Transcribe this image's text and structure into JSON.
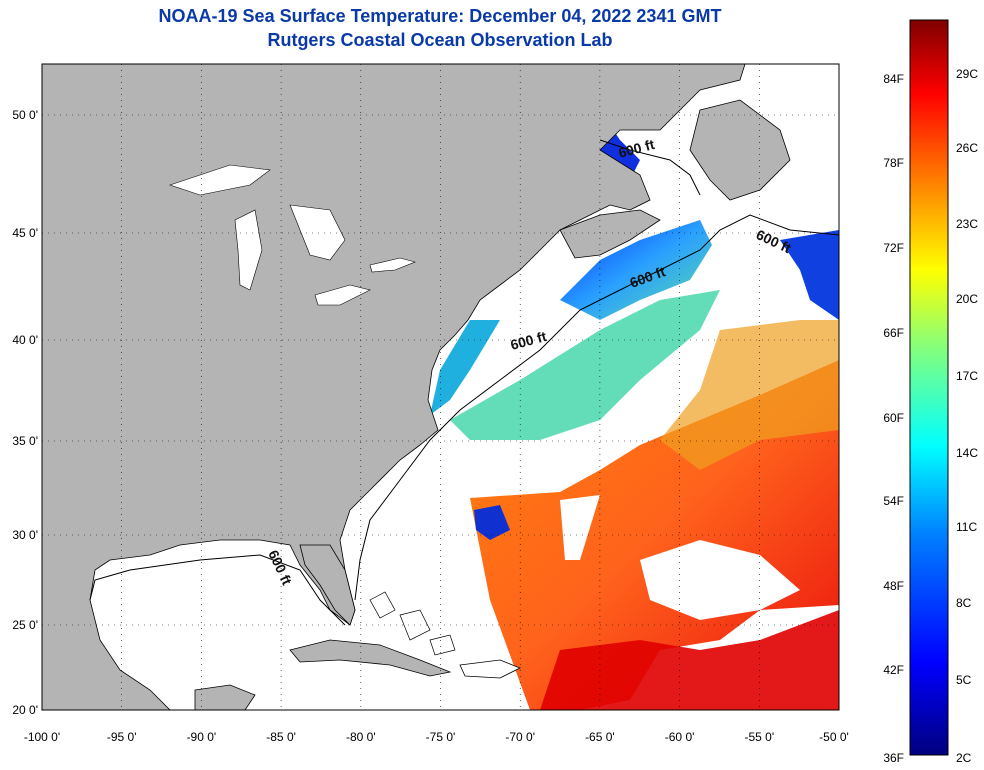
{
  "header": {
    "title": "NOAA-19 Sea Surface Temperature:  December 04, 2022 2341 GMT",
    "subtitle": "Rutgers Coastal Ocean Observation Lab"
  },
  "map": {
    "lon_range": [
      -100,
      -50
    ],
    "lat_range": [
      20,
      52.5
    ],
    "lon_ticks": [
      "-100 0'",
      "-95 0'",
      "-90 0'",
      "-85 0'",
      "-80 0'",
      "-75 0'",
      "-70 0'",
      "-65 0'",
      "-60 0'",
      "-55 0'",
      "-50 0'"
    ],
    "lat_ticks": [
      "50 0'",
      "45 0'",
      "40 0'",
      "35 0'",
      "30 0'",
      "25 0'",
      "20 0'"
    ],
    "grid": "dotted",
    "land_color": "#b4b4b4",
    "cloud_color": "#ffffff",
    "contour_labels": [
      "600 ft",
      "600 ft",
      "600 ft",
      "600 ft",
      "600 ft"
    ]
  },
  "colorbar": {
    "fahrenheit_labels": [
      "84F",
      "78F",
      "72F",
      "66F",
      "60F",
      "54F",
      "48F",
      "42F",
      "36F"
    ],
    "celsius_labels": [
      "29C",
      "26C",
      "23C",
      "20C",
      "17C",
      "14C",
      "11C",
      "8C",
      "5C",
      "2C"
    ],
    "colors": [
      "#00007f",
      "#0000ff",
      "#0080ff",
      "#00ffff",
      "#80ff80",
      "#ffff00",
      "#ff8000",
      "#ff0000",
      "#7f0000"
    ]
  }
}
